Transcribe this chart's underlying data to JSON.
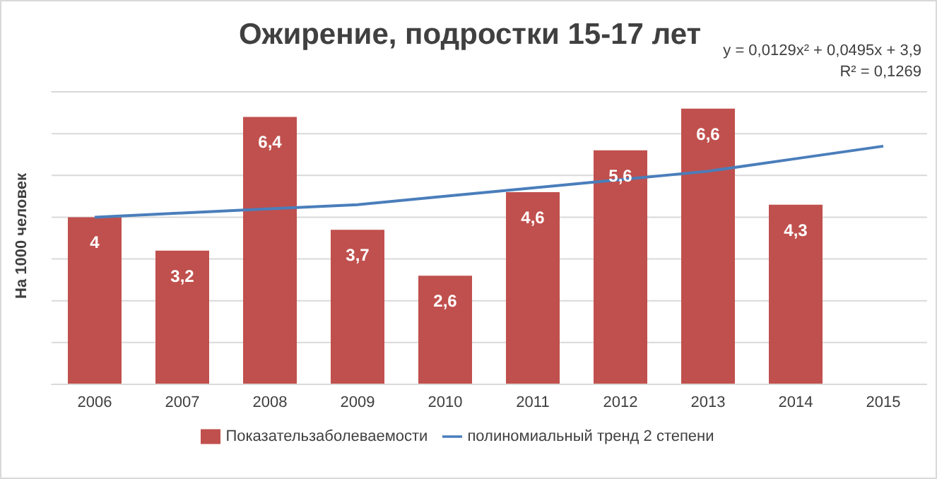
{
  "chart_data": {
    "type": "bar",
    "title": "Ожирение, подростки 15-17 лет",
    "ylabel": "На 1000 человек",
    "categories": [
      "2006",
      "2007",
      "2008",
      "2009",
      "2010",
      "2011",
      "2012",
      "2013",
      "2014",
      "2015"
    ],
    "series": [
      {
        "name": "Показательзаболеваемости",
        "color": "#c0504d",
        "values": [
          4,
          3.2,
          6.4,
          3.7,
          2.6,
          4.6,
          5.6,
          6.6,
          4.3,
          null
        ],
        "value_labels": [
          "4",
          "3,2",
          "6,4",
          "3,7",
          "2,6",
          "4,6",
          "5,6",
          "6,6",
          "4,3",
          null
        ]
      },
      {
        "type": "line",
        "name": "полиномиальный тренд 2 степени",
        "color": "#4a7ebb",
        "values": [
          4.0,
          4.1,
          4.2,
          4.3,
          4.5,
          4.7,
          4.9,
          5.1,
          5.4,
          5.7
        ]
      }
    ],
    "ylim": [
      0,
      7
    ],
    "tick_labels": "x",
    "grid": "y",
    "legend": "bottom",
    "marker": "none",
    "line_style": "solid",
    "annotations": [
      "y = 0,0129x² + 0,0495x + 3,9",
      "R² = 0,1269"
    ]
  }
}
